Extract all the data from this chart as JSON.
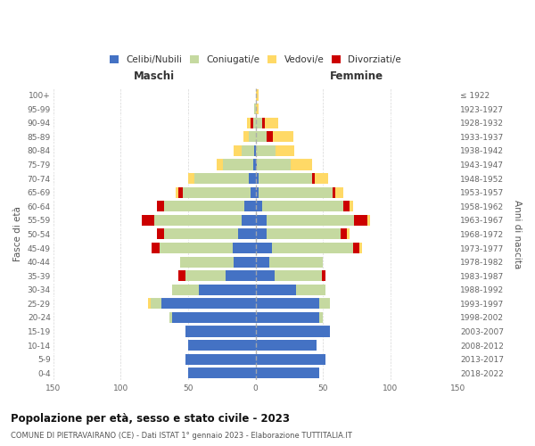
{
  "age_groups": [
    "0-4",
    "5-9",
    "10-14",
    "15-19",
    "20-24",
    "25-29",
    "30-34",
    "35-39",
    "40-44",
    "45-49",
    "50-54",
    "55-59",
    "60-64",
    "65-69",
    "70-74",
    "75-79",
    "80-84",
    "85-89",
    "90-94",
    "95-99",
    "100+"
  ],
  "birth_years": [
    "2018-2022",
    "2013-2017",
    "2008-2012",
    "2003-2007",
    "1998-2002",
    "1993-1997",
    "1988-1992",
    "1983-1987",
    "1978-1982",
    "1973-1977",
    "1968-1972",
    "1963-1967",
    "1958-1962",
    "1953-1957",
    "1948-1952",
    "1943-1947",
    "1938-1942",
    "1933-1937",
    "1928-1932",
    "1923-1927",
    "≤ 1922"
  ],
  "maschi": {
    "celibi": [
      50,
      52,
      50,
      52,
      62,
      70,
      42,
      22,
      16,
      17,
      13,
      10,
      8,
      4,
      5,
      2,
      1,
      0,
      0,
      0,
      0
    ],
    "coniugati": [
      0,
      0,
      0,
      0,
      2,
      8,
      20,
      30,
      40,
      54,
      55,
      65,
      60,
      50,
      40,
      22,
      9,
      5,
      2,
      1,
      0
    ],
    "vedovi": [
      0,
      0,
      0,
      0,
      0,
      2,
      0,
      0,
      0,
      0,
      0,
      0,
      0,
      2,
      5,
      5,
      6,
      4,
      2,
      0,
      0
    ],
    "divorziati": [
      0,
      0,
      0,
      0,
      0,
      0,
      0,
      5,
      0,
      6,
      5,
      9,
      5,
      3,
      0,
      0,
      0,
      0,
      2,
      0,
      0
    ]
  },
  "femmine": {
    "nubili": [
      47,
      52,
      45,
      55,
      47,
      47,
      30,
      14,
      10,
      12,
      8,
      8,
      5,
      2,
      2,
      1,
      0,
      0,
      0,
      0,
      0
    ],
    "coniugate": [
      0,
      0,
      0,
      0,
      3,
      8,
      22,
      35,
      40,
      60,
      55,
      65,
      60,
      55,
      40,
      25,
      15,
      8,
      5,
      0,
      0
    ],
    "vedove": [
      0,
      0,
      0,
      0,
      0,
      0,
      0,
      0,
      0,
      2,
      2,
      2,
      2,
      6,
      10,
      16,
      14,
      15,
      10,
      2,
      2
    ],
    "divorziate": [
      0,
      0,
      0,
      0,
      0,
      0,
      0,
      3,
      0,
      5,
      5,
      10,
      5,
      2,
      2,
      0,
      0,
      5,
      2,
      0,
      0
    ]
  },
  "colors": {
    "celibi": "#4472C4",
    "coniugati": "#C5D9A0",
    "vedovi": "#FFD966",
    "divorziati": "#CC0000"
  },
  "xlim": 150,
  "title": "Popolazione per età, sesso e stato civile - 2023",
  "subtitle": "COMUNE DI PIETRAVAIRANO (CE) - Dati ISTAT 1° gennaio 2023 - Elaborazione TUTTITALIA.IT",
  "ylabel_left": "Fasce di età",
  "ylabel_right": "Anni di nascita",
  "legend_labels": [
    "Celibi/Nubili",
    "Coniugati/e",
    "Vedovi/e",
    "Divorziati/e"
  ],
  "bg_color": "#ffffff",
  "grid_color": "#cccccc"
}
